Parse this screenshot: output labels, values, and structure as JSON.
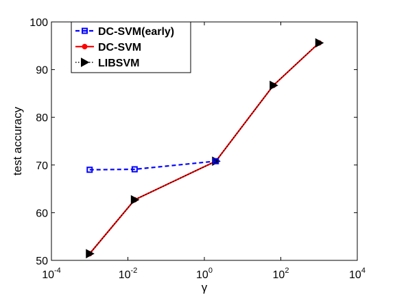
{
  "chart_data": {
    "type": "line",
    "xlabel": "γ",
    "ylabel": "test accuracy",
    "xscale": "log",
    "xlim": [
      0.0001,
      10000
    ],
    "ylim": [
      50,
      100
    ],
    "x_ticks": [
      {
        "value": 0.0001,
        "base": "10",
        "exp": "-4"
      },
      {
        "value": 0.01,
        "base": "10",
        "exp": "-2"
      },
      {
        "value": 1,
        "base": "10",
        "exp": "0"
      },
      {
        "value": 100,
        "base": "10",
        "exp": "2"
      },
      {
        "value": 10000,
        "base": "10",
        "exp": "4"
      }
    ],
    "y_ticks": [
      "50",
      "60",
      "70",
      "80",
      "90",
      "100"
    ],
    "grid": false,
    "legend_position": "top-left",
    "series": [
      {
        "name": "DC-SVM(early)",
        "x": [
          0.001,
          0.015,
          2
        ],
        "y": [
          69.0,
          69.1,
          70.8
        ],
        "color": "#0000ff",
        "line": "dashed",
        "marker": "square"
      },
      {
        "name": "DC-SVM",
        "x": [
          0.001,
          0.015,
          2,
          64,
          1000
        ],
        "y": [
          51.4,
          62.7,
          70.8,
          86.7,
          95.6
        ],
        "color": "#ff0000",
        "line": "solid",
        "marker": "circle"
      },
      {
        "name": "LIBSVM",
        "x": [
          0.001,
          0.015,
          2,
          64,
          1000
        ],
        "y": [
          51.4,
          62.7,
          70.8,
          86.7,
          95.6
        ],
        "color": "#000000",
        "line": "dotted",
        "marker": "triangle-right"
      }
    ]
  }
}
